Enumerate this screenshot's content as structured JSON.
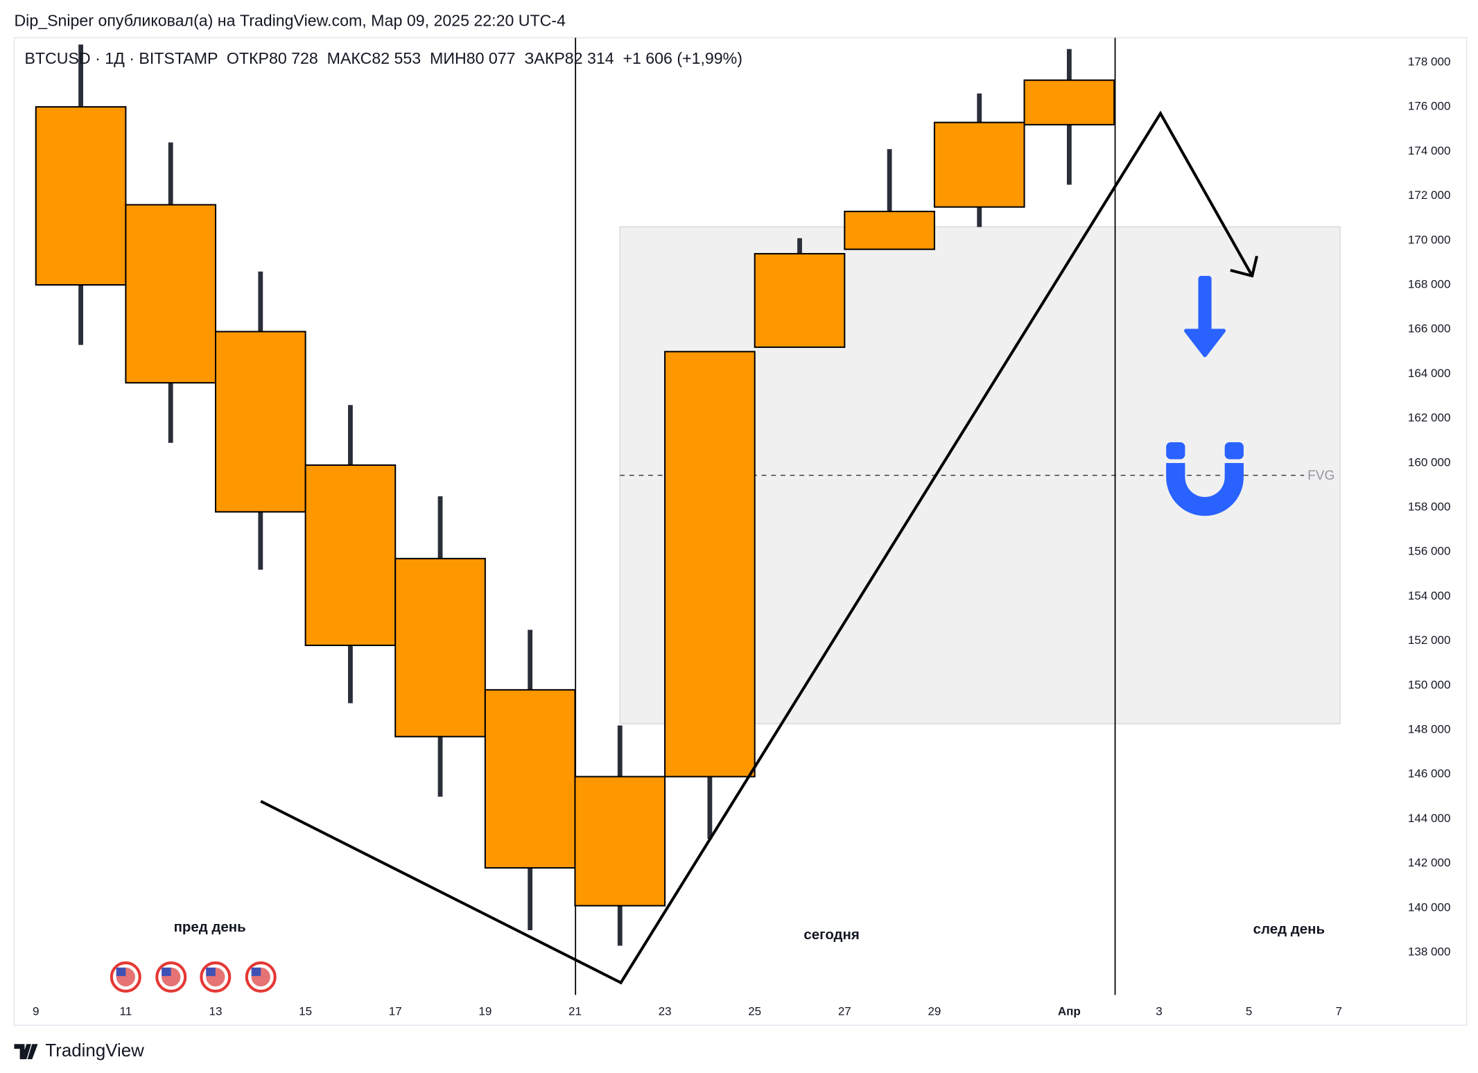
{
  "header": "Dip_Sniper опубликовал(а) на TradingView.com, Мар 09, 2025 22:20 UTC-4",
  "footer": "TradingView",
  "chart_data": {
    "type": "candlestick",
    "title": "BTCUSD · 1Д · BITSTAMP  ОТКР80 728  МАКС82 553  МИН80 077  ЗАКР82 314  +1 606 (+1,99%)",
    "x": [
      10,
      12,
      14,
      16,
      18,
      20,
      22,
      24,
      26,
      28,
      30,
      32
    ],
    "open": [
      176000,
      171600,
      165900,
      159900,
      155700,
      149800,
      145900,
      145900,
      165200,
      169600,
      171500,
      175200
    ],
    "high": [
      178800,
      174400,
      168600,
      162600,
      158500,
      152500,
      148200,
      165000,
      170100,
      174100,
      176600,
      178600
    ],
    "low": [
      165300,
      160900,
      155200,
      149200,
      145000,
      139000,
      138300,
      143100,
      165200,
      169600,
      170600,
      172500
    ],
    "close": [
      168000,
      163600,
      157800,
      151800,
      147700,
      141800,
      140100,
      165000,
      169400,
      171300,
      175300,
      177200
    ],
    "color": "#ff9800",
    "wick_color": "#2a2e39",
    "xlim": [
      8.5,
      39.1
    ],
    "xticks": [
      9,
      11,
      13,
      15,
      17,
      19,
      21,
      23,
      25,
      27,
      29,
      {
        "value": 32,
        "label": "Апр"
      },
      {
        "value": 34,
        "label": "3"
      },
      {
        "value": 36,
        "label": "5"
      },
      {
        "value": 38,
        "label": "7"
      }
    ],
    "ylim": [
      136000,
      179100
    ],
    "yticks": [
      {
        "value": 138000,
        "label": "138 000"
      },
      {
        "value": 140000,
        "label": "140 000"
      },
      {
        "value": 142000,
        "label": "142 000"
      },
      {
        "value": 144000,
        "label": "144 000"
      },
      {
        "value": 146000,
        "label": "146 000"
      },
      {
        "value": 148000,
        "label": "148 000"
      },
      {
        "value": 150000,
        "label": "150 000"
      },
      {
        "value": 152000,
        "label": "152 000"
      },
      {
        "value": 154000,
        "label": "154 000"
      },
      {
        "value": 156000,
        "label": "156 000"
      },
      {
        "value": 158000,
        "label": "158 000"
      },
      {
        "value": 160000,
        "label": "160 000"
      },
      {
        "value": 162000,
        "label": "162 000"
      },
      {
        "value": 164000,
        "label": "164 000"
      },
      {
        "value": 166000,
        "label": "166 000"
      },
      {
        "value": 168000,
        "label": "168 000"
      },
      {
        "value": 170000,
        "label": "170 000"
      },
      {
        "value": 172000,
        "label": "172 000"
      },
      {
        "value": 174000,
        "label": "174 000"
      },
      {
        "value": 176000,
        "label": "176 000"
      },
      {
        "value": 178000,
        "label": "178 000"
      }
    ],
    "annotations": [
      "пред день",
      "сегодня",
      "след день",
      "FVG"
    ]
  }
}
